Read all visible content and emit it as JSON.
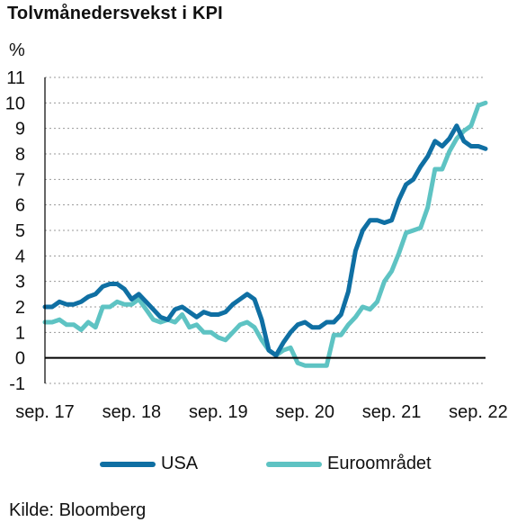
{
  "title": "Tolvmånedersvekst i KPI",
  "source": "Kilde: Bloomberg",
  "colors": {
    "usa": "#0f6fa3",
    "euro": "#5ec3c3",
    "grid": "#9a9a9a",
    "axis": "#000000"
  },
  "chart_data": {
    "type": "line",
    "ylabel": "%",
    "ylim": [
      -1,
      11
    ],
    "yticks": [
      -1,
      0,
      1,
      2,
      3,
      4,
      5,
      6,
      7,
      8,
      9,
      10,
      11
    ],
    "xlim": [
      "2017-09",
      "2022-10"
    ],
    "xticks": [
      "2017-09",
      "2018-09",
      "2019-09",
      "2020-09",
      "2021-09",
      "2022-09"
    ],
    "xtick_labels": [
      "sep. 17",
      "sep. 18",
      "sep. 19",
      "sep. 20",
      "sep. 21",
      "sep. 22"
    ],
    "grid": "horizontal-dotted",
    "legend_position": "bottom",
    "series": [
      {
        "name": "USA",
        "x": [
          "2017-09",
          "2017-10",
          "2017-11",
          "2017-12",
          "2018-01",
          "2018-02",
          "2018-03",
          "2018-04",
          "2018-05",
          "2018-06",
          "2018-07",
          "2018-08",
          "2018-09",
          "2018-10",
          "2018-11",
          "2018-12",
          "2019-01",
          "2019-02",
          "2019-03",
          "2019-04",
          "2019-05",
          "2019-06",
          "2019-07",
          "2019-08",
          "2019-09",
          "2019-10",
          "2019-11",
          "2019-12",
          "2020-01",
          "2020-02",
          "2020-03",
          "2020-04",
          "2020-05",
          "2020-06",
          "2020-07",
          "2020-08",
          "2020-09",
          "2020-10",
          "2020-11",
          "2020-12",
          "2021-01",
          "2021-02",
          "2021-03",
          "2021-04",
          "2021-05",
          "2021-06",
          "2021-07",
          "2021-08",
          "2021-09",
          "2021-10",
          "2021-11",
          "2021-12",
          "2022-01",
          "2022-02",
          "2022-03",
          "2022-04",
          "2022-05",
          "2022-06",
          "2022-07",
          "2022-08",
          "2022-09",
          "2022-10"
        ],
        "values": [
          2.0,
          2.0,
          2.2,
          2.1,
          2.1,
          2.2,
          2.4,
          2.5,
          2.8,
          2.9,
          2.9,
          2.7,
          2.3,
          2.5,
          2.2,
          1.9,
          1.6,
          1.5,
          1.9,
          2.0,
          1.8,
          1.6,
          1.8,
          1.7,
          1.7,
          1.8,
          2.1,
          2.3,
          2.5,
          2.3,
          1.5,
          0.3,
          0.1,
          0.6,
          1.0,
          1.3,
          1.4,
          1.2,
          1.2,
          1.4,
          1.4,
          1.7,
          2.6,
          4.2,
          5.0,
          5.4,
          5.4,
          5.3,
          5.4,
          6.2,
          6.8,
          7.0,
          7.5,
          7.9,
          8.5,
          8.3,
          8.6,
          9.1,
          8.5,
          8.3,
          8.3,
          8.2
        ]
      },
      {
        "name": "Euroområdet",
        "x": [
          "2017-09",
          "2017-10",
          "2017-11",
          "2017-12",
          "2018-01",
          "2018-02",
          "2018-03",
          "2018-04",
          "2018-05",
          "2018-06",
          "2018-07",
          "2018-08",
          "2018-09",
          "2018-10",
          "2018-11",
          "2018-12",
          "2019-01",
          "2019-02",
          "2019-03",
          "2019-04",
          "2019-05",
          "2019-06",
          "2019-07",
          "2019-08",
          "2019-09",
          "2019-10",
          "2019-11",
          "2019-12",
          "2020-01",
          "2020-02",
          "2020-03",
          "2020-04",
          "2020-05",
          "2020-06",
          "2020-07",
          "2020-08",
          "2020-09",
          "2020-10",
          "2020-11",
          "2020-12",
          "2021-01",
          "2021-02",
          "2021-03",
          "2021-04",
          "2021-05",
          "2021-06",
          "2021-07",
          "2021-08",
          "2021-09",
          "2021-10",
          "2021-11",
          "2021-12",
          "2022-01",
          "2022-02",
          "2022-03",
          "2022-04",
          "2022-05",
          "2022-06",
          "2022-07",
          "2022-08",
          "2022-09",
          "2022-10"
        ],
        "values": [
          1.4,
          1.4,
          1.5,
          1.3,
          1.3,
          1.1,
          1.4,
          1.2,
          2.0,
          2.0,
          2.2,
          2.1,
          2.1,
          2.3,
          1.9,
          1.5,
          1.4,
          1.5,
          1.4,
          1.7,
          1.2,
          1.3,
          1.0,
          1.0,
          0.8,
          0.7,
          1.0,
          1.3,
          1.4,
          1.2,
          0.7,
          0.3,
          0.1,
          0.3,
          0.4,
          -0.2,
          -0.3,
          -0.3,
          -0.3,
          -0.3,
          0.9,
          0.9,
          1.3,
          1.6,
          2.0,
          1.9,
          2.2,
          3.0,
          3.4,
          4.1,
          4.9,
          5.0,
          5.1,
          5.9,
          7.4,
          7.4,
          8.1,
          8.6,
          8.9,
          9.1,
          9.9,
          10.0
        ]
      }
    ]
  }
}
